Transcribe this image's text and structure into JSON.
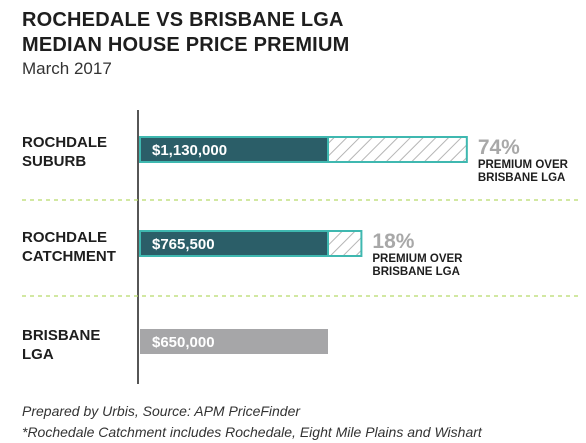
{
  "colors": {
    "base_bar": "#2b5e68",
    "base_bar_border": "#3fb8b0",
    "premium_hatch": "#b5b5b5",
    "premium_border": "#3fb8b0",
    "reference_bar": "#a6a6a8",
    "divider": "#b8d96a",
    "axis": "#1e1e1e"
  },
  "header": {
    "title_line1": "ROCHEDALE VS BRISBANE LGA",
    "title_line2": "MEDIAN HOUSE PRICE PREMIUM",
    "subtitle": "March 2017"
  },
  "footnotes": {
    "source": "Prepared by Urbis, Source: APM PriceFinder",
    "note": "*Rochedale Catchment includes Rochedale, Eight Mile Plains and Wishart"
  },
  "chart_data": {
    "type": "bar",
    "orientation": "horizontal",
    "baseline_value": 650000,
    "categories": [
      {
        "label_lines": [
          "ROCHDALE",
          "SUBURB"
        ],
        "value": 1130000,
        "value_label": "$1,130,000",
        "premium_pct": 74,
        "premium_label": "74%",
        "premium_note_lines": [
          "PREMIUM OVER",
          "BRISBANE LGA"
        ]
      },
      {
        "label_lines": [
          "ROCHDALE",
          "CATCHMENT"
        ],
        "value": 765500,
        "value_label": "$765,500",
        "premium_pct": 18,
        "premium_label": "18%",
        "premium_note_lines": [
          "PREMIUM OVER",
          "BRISBANE LGA"
        ]
      },
      {
        "label_lines": [
          "BRISBANE",
          "LGA"
        ],
        "value": 650000,
        "value_label": "$650,000",
        "premium_pct": null,
        "premium_label": "",
        "premium_note_lines": []
      }
    ]
  }
}
